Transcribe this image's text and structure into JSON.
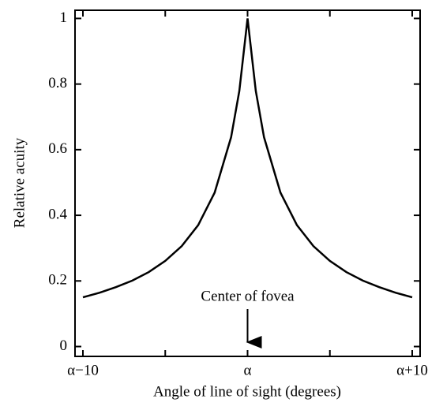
{
  "chart_data": {
    "type": "line",
    "xlabel": "Angle of line of sight (degrees)",
    "ylabel": "Relative acuity",
    "annotation": "Center of fovea",
    "x": [
      -10,
      -9,
      -8,
      -7,
      -6,
      -5,
      -4,
      -3,
      -2,
      -1,
      -0.5,
      0,
      0.5,
      1,
      2,
      3,
      4,
      5,
      6,
      7,
      8,
      9,
      10
    ],
    "series": [
      {
        "color": "#000000",
        "values": [
          0.15,
          0.164,
          0.181,
          0.201,
          0.227,
          0.261,
          0.306,
          0.37,
          0.469,
          0.638,
          0.779,
          1,
          0.779,
          0.638,
          0.469,
          0.37,
          0.306,
          0.261,
          0.227,
          0.201,
          0.181,
          0.164,
          0.15
        ]
      }
    ],
    "xlim": [
      -10.48,
      10.48
    ],
    "ylim": [
      -0.03,
      1.025
    ],
    "xticks": [
      {
        "value": -10,
        "label": "α−10"
      },
      {
        "value": 0,
        "label": "α"
      },
      {
        "value": 10,
        "label": "α+10"
      }
    ],
    "xminorticks": [
      -5,
      5
    ],
    "yticks": [
      0,
      0.2,
      0.4,
      0.6,
      0.8,
      1
    ],
    "grid": false
  }
}
